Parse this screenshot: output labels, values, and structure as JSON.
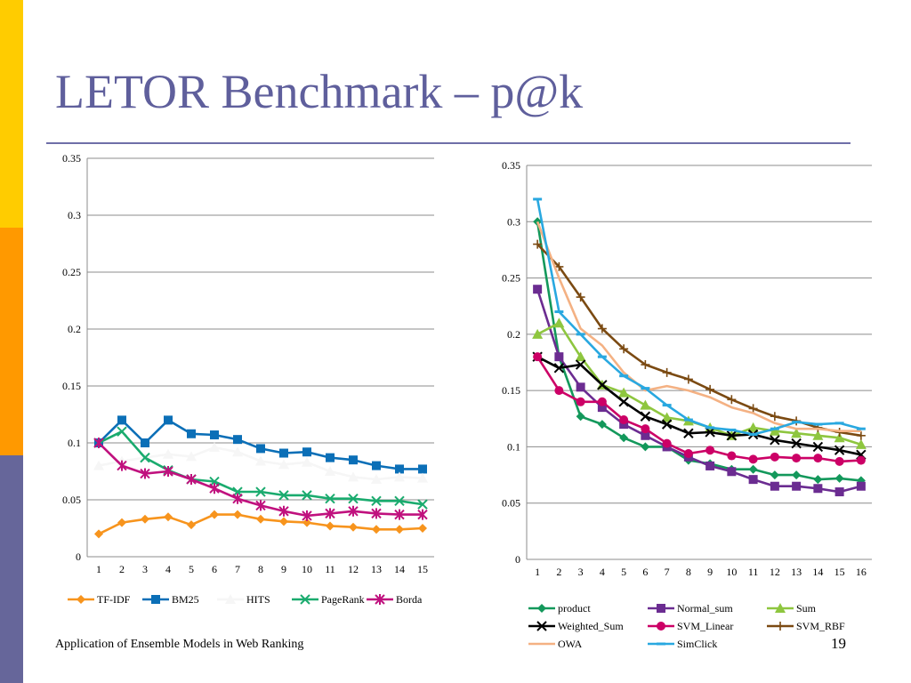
{
  "slide": {
    "title": "LETOR Benchmark – p@k",
    "footer": "Application of Ensemble Models in Web Ranking",
    "page_number": "19"
  },
  "theme": {
    "stripe_colors": [
      "#ffcc00",
      "#ff9900",
      "#66669a"
    ],
    "title_color": "#5f5f9c"
  },
  "chart_data": [
    {
      "type": "line",
      "title": "",
      "xlabel": "",
      "ylabel": "",
      "x": [
        1,
        2,
        3,
        4,
        5,
        6,
        7,
        8,
        9,
        10,
        11,
        12,
        13,
        14,
        15
      ],
      "ylim": [
        0,
        0.35
      ],
      "yticks": [
        0,
        0.05,
        0.1,
        0.15,
        0.2,
        0.25,
        0.3,
        0.35
      ],
      "ytick_labels": [
        "0",
        "0.05",
        "0.1",
        "0.15",
        "0.2",
        "0.25",
        "0.3",
        "0.35"
      ],
      "grid": "horizontal",
      "legend_position": "bottom",
      "series": [
        {
          "name": "TF-IDF",
          "color": "#f7941d",
          "marker": "diamond",
          "values": [
            0.02,
            0.03,
            0.033,
            0.035,
            0.028,
            0.037,
            0.037,
            0.033,
            0.031,
            0.03,
            0.027,
            0.026,
            0.024,
            0.024,
            0.025
          ]
        },
        {
          "name": "BM25",
          "color": "#0b6fb7",
          "marker": "square",
          "values": [
            0.1,
            0.12,
            0.1,
            0.12,
            0.108,
            0.107,
            0.103,
            0.095,
            0.091,
            0.092,
            0.087,
            0.085,
            0.08,
            0.077,
            0.077
          ]
        },
        {
          "name": "HITS",
          "color": "#f6f6f6",
          "marker": "triangle",
          "values": [
            0.08,
            0.084,
            0.087,
            0.09,
            0.088,
            0.096,
            0.092,
            0.084,
            0.081,
            0.083,
            0.075,
            0.07,
            0.068,
            0.07,
            0.069
          ]
        },
        {
          "name": "PageRank",
          "color": "#1aab6e",
          "marker": "x",
          "values": [
            0.1,
            0.11,
            0.087,
            0.076,
            0.068,
            0.066,
            0.057,
            0.057,
            0.054,
            0.054,
            0.051,
            0.051,
            0.049,
            0.049,
            0.046
          ]
        },
        {
          "name": "Borda",
          "color": "#c0117e",
          "marker": "star",
          "values": [
            0.1,
            0.08,
            0.073,
            0.075,
            0.068,
            0.06,
            0.051,
            0.045,
            0.04,
            0.036,
            0.038,
            0.04,
            0.038,
            0.037,
            0.037
          ]
        }
      ]
    },
    {
      "type": "line",
      "title": "",
      "xlabel": "",
      "ylabel": "",
      "x": [
        1,
        2,
        3,
        4,
        5,
        6,
        7,
        8,
        9,
        10,
        11,
        12,
        13,
        14,
        15,
        16
      ],
      "ylim": [
        0,
        0.35
      ],
      "yticks": [
        0,
        0.05,
        0.1,
        0.15,
        0.2,
        0.25,
        0.3,
        0.35
      ],
      "ytick_labels": [
        "0",
        "0.05",
        "0.1",
        "0.15",
        "0.2",
        "0.25",
        "0.3",
        "0.35"
      ],
      "grid": "horizontal",
      "legend_position": "bottom",
      "series": [
        {
          "name": "product",
          "color": "#13985b",
          "marker": "diamond",
          "values": [
            0.3,
            0.18,
            0.127,
            0.12,
            0.108,
            0.1,
            0.1,
            0.088,
            0.085,
            0.08,
            0.08,
            0.075,
            0.075,
            0.071,
            0.072,
            0.07
          ]
        },
        {
          "name": "Normal_sum",
          "color": "#6b2c91",
          "marker": "square",
          "values": [
            0.24,
            0.18,
            0.153,
            0.135,
            0.12,
            0.11,
            0.1,
            0.091,
            0.083,
            0.078,
            0.071,
            0.065,
            0.065,
            0.063,
            0.06,
            0.065
          ]
        },
        {
          "name": "Sum",
          "color": "#8ec63f",
          "marker": "triangle",
          "values": [
            0.2,
            0.21,
            0.18,
            0.155,
            0.148,
            0.137,
            0.126,
            0.123,
            0.117,
            0.11,
            0.117,
            0.114,
            0.112,
            0.11,
            0.108,
            0.102
          ]
        },
        {
          "name": "Weighted_Sum",
          "color": "#000000",
          "marker": "x",
          "values": [
            0.18,
            0.17,
            0.173,
            0.155,
            0.14,
            0.127,
            0.12,
            0.112,
            0.113,
            0.11,
            0.111,
            0.106,
            0.103,
            0.1,
            0.097,
            0.093
          ]
        },
        {
          "name": "SVM_Linear",
          "color": "#cc0066",
          "marker": "circle",
          "values": [
            0.18,
            0.15,
            0.14,
            0.14,
            0.124,
            0.116,
            0.103,
            0.094,
            0.097,
            0.092,
            0.089,
            0.091,
            0.09,
            0.09,
            0.087,
            0.088
          ]
        },
        {
          "name": "SVM_RBF",
          "color": "#7b4a12",
          "marker": "plus",
          "values": [
            0.28,
            0.26,
            0.233,
            0.205,
            0.187,
            0.173,
            0.166,
            0.16,
            0.151,
            0.142,
            0.134,
            0.127,
            0.123,
            0.117,
            0.113,
            0.11
          ]
        },
        {
          "name": "OWA",
          "color": "#f4b183",
          "marker": "none",
          "values": [
            0.3,
            0.25,
            0.205,
            0.19,
            0.166,
            0.15,
            0.154,
            0.15,
            0.144,
            0.135,
            0.13,
            0.121,
            0.116,
            0.116,
            0.114,
            0.114
          ]
        },
        {
          "name": "SimClick",
          "color": "#29a8e0",
          "marker": "dash",
          "values": [
            0.32,
            0.22,
            0.2,
            0.18,
            0.163,
            0.152,
            0.137,
            0.124,
            0.117,
            0.115,
            0.111,
            0.116,
            0.122,
            0.12,
            0.121,
            0.116
          ]
        }
      ]
    }
  ]
}
